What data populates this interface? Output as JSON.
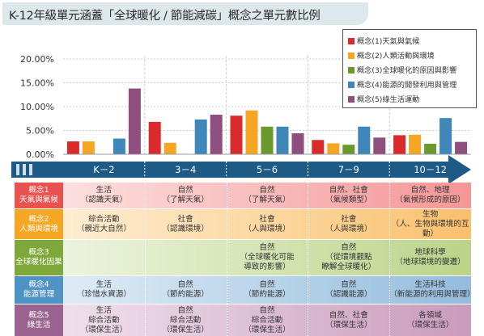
{
  "title": "K-12年級單元涵蓋「全球暖化 / 節能減碳」概念之單元數比例",
  "chart_data": {
    "type": "bar",
    "categories": [
      "K－2",
      "3－4",
      "5－6",
      "7－9",
      "10－12"
    ],
    "series": [
      {
        "name": "概念(1)天氣與氣候",
        "color": "#d92b2b",
        "values": [
          2.7,
          6.8,
          8.1,
          3.0,
          4.0
        ]
      },
      {
        "name": "概念(2)人類活動與環境",
        "color": "#f5a623",
        "values": [
          2.7,
          2.4,
          9.2,
          2.3,
          4.1
        ]
      },
      {
        "name": "概念(3)全球暖化的原因與影響",
        "color": "#6a9a2e",
        "values": [
          0,
          0,
          5.8,
          2.0,
          2.2
        ]
      },
      {
        "name": "概念(4)能源的開發利用與管理",
        "color": "#3f87b8",
        "values": [
          3.3,
          7.3,
          5.8,
          5.8,
          7.6
        ]
      },
      {
        "name": "概念(5)綠生活運動",
        "color": "#8e4f7e",
        "values": [
          13.8,
          8.3,
          4.4,
          3.5,
          2.6
        ]
      }
    ],
    "ylim": [
      0,
      20
    ],
    "yticks": [
      "0.00%",
      "5.00%",
      "10.00%",
      "15.00%",
      "20.00%"
    ],
    "grid": true,
    "legend_position": "top-right"
  },
  "table": {
    "rows": [
      {
        "head": "概念1\n天氣與氣候",
        "head_color": "#e8524f",
        "cells": [
          "生活\n（認識天氣）",
          "自然\n（了解天氣）",
          "自然\n（了解天氣）",
          "自然、社會\n（氣候類型）",
          "自然、地理\n（氣候形成的原因）"
        ],
        "band": [
          "#fde8e8",
          "#fbd3d3",
          "#f9c0c0",
          "#f7aaaa",
          "#f49696"
        ]
      },
      {
        "head": "概念2\n人類與環境",
        "head_color": "#f5a623",
        "cells": [
          "綜合活動\n（親近大自然）",
          "社會\n（認識環境）",
          "社會\n（人與環境）",
          "社會\n（人與環境）",
          "生物\n（人、生物與環境的互動）"
        ],
        "band": [
          "#fef1dc",
          "#fde6c2",
          "#fcdaa6",
          "#fbcd88",
          "#f9c06d"
        ]
      },
      {
        "head": "概念3\n全球暖化因果",
        "head_color": "#7fa83a",
        "cells": [
          "",
          "",
          "自然\n（全球暖化可能\n導致的影響）",
          "自然\n（從環境觀點\n瞭解全球暖化）",
          "地球科學\n（地球環境的變遷）"
        ],
        "band": [
          "#f1f6e6",
          "#e5efd1",
          "#d7e6b9",
          "#c9dda1",
          "#bad388"
        ]
      },
      {
        "head": "概念4\n能源管理",
        "head_color": "#4f93c4",
        "cells": [
          "生活\n（珍惜水資源）",
          "自然\n（節約能源）",
          "自然\n（節約能源）",
          "自然\n（認識能源）",
          "生活科技\n（新能源的利用與管理）"
        ],
        "band": [
          "#e6f0f8",
          "#d3e4f2",
          "#bed7eb",
          "#a8c9e4",
          "#94bcdd"
        ]
      },
      {
        "head": "概念5\n綠生活",
        "head_color": "#9a6390",
        "cells": [
          "生活\n綜合活動\n（環保生活）",
          "自然\n綜合活動\n（環保生活）",
          "自然\n綜合活動\n（環保生活）",
          "自然、社會\n（環保生活）",
          "各領域\n（環保生活）"
        ],
        "band": [
          "#f3e6ef",
          "#ead5e4",
          "#dfc2d7",
          "#d4aec9",
          "#c99bbc"
        ]
      }
    ]
  }
}
